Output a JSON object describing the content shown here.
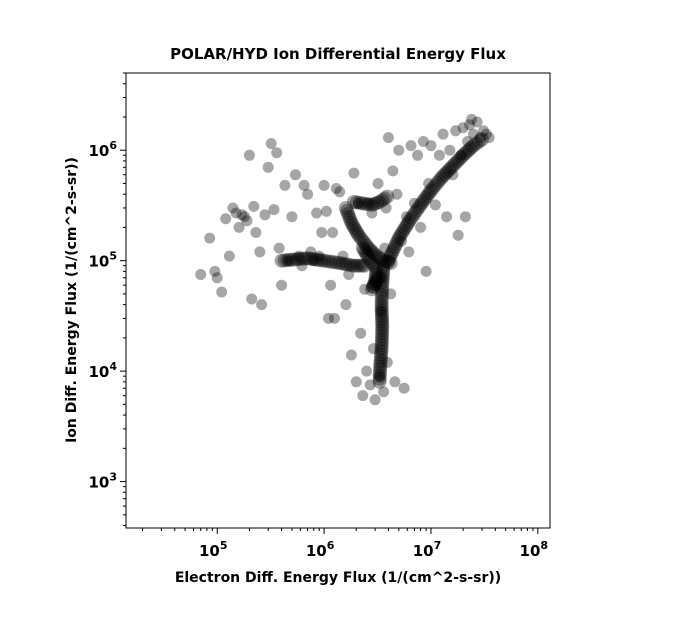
{
  "chart_data": {
    "type": "scatter",
    "title": "POLAR/HYD  Ion Differential Energy Flux",
    "xlabel": "Electron Diff. Energy Flux (1/(cm^2-s-sr))",
    "ylabel": "Ion Diff. Energy Flux (1/(cm^2-s-sr))",
    "xscale": "log",
    "yscale": "log",
    "xlim": [
      14000,
      130000000
    ],
    "ylim": [
      380,
      5000000
    ],
    "xticks": [
      {
        "base": "10",
        "exp": "5",
        "value": 100000
      },
      {
        "base": "10",
        "exp": "6",
        "value": 1000000
      },
      {
        "base": "10",
        "exp": "7",
        "value": 10000000
      },
      {
        "base": "10",
        "exp": "8",
        "value": 100000000
      }
    ],
    "yticks": [
      {
        "base": "10",
        "exp": "3",
        "value": 1000
      },
      {
        "base": "10",
        "exp": "4",
        "value": 10000
      },
      {
        "base": "10",
        "exp": "5",
        "value": 100000
      },
      {
        "base": "10",
        "exp": "6",
        "value": 1000000
      }
    ],
    "grid": false,
    "legend": "none",
    "marker_color": "#000000",
    "marker_alpha": 0.35,
    "points": [
      [
        70000,
        75000
      ],
      [
        85000,
        160000
      ],
      [
        95000,
        80000
      ],
      [
        100000,
        70000
      ],
      [
        110000,
        52000
      ],
      [
        120000,
        240000
      ],
      [
        130000,
        110000
      ],
      [
        140000,
        300000
      ],
      [
        150000,
        270000
      ],
      [
        160000,
        200000
      ],
      [
        170000,
        260000
      ],
      [
        180000,
        250000
      ],
      [
        190000,
        230000
      ],
      [
        200000,
        900000
      ],
      [
        210000,
        45000
      ],
      [
        220000,
        310000
      ],
      [
        230000,
        180000
      ],
      [
        250000,
        120000
      ],
      [
        260000,
        40000
      ],
      [
        280000,
        260000
      ],
      [
        300000,
        700000
      ],
      [
        320000,
        1150000
      ],
      [
        340000,
        290000
      ],
      [
        360000,
        950000
      ],
      [
        380000,
        130000
      ],
      [
        400000,
        60000
      ],
      [
        430000,
        480000
      ],
      [
        460000,
        100000
      ],
      [
        500000,
        250000
      ],
      [
        540000,
        600000
      ],
      [
        580000,
        110000
      ],
      [
        620000,
        90000
      ],
      [
        650000,
        480000
      ],
      [
        700000,
        400000
      ],
      [
        750000,
        120000
      ],
      [
        800000,
        100000
      ],
      [
        850000,
        270000
      ],
      [
        900000,
        110000
      ],
      [
        950000,
        180000
      ],
      [
        1000000,
        480000
      ],
      [
        1050000,
        280000
      ],
      [
        1100000,
        30000
      ],
      [
        1150000,
        60000
      ],
      [
        1200000,
        180000
      ],
      [
        1250000,
        30000
      ],
      [
        1300000,
        450000
      ],
      [
        1400000,
        420000
      ],
      [
        1500000,
        110000
      ],
      [
        1600000,
        40000
      ],
      [
        1700000,
        75000
      ],
      [
        1800000,
        14000
      ],
      [
        1900000,
        620000
      ],
      [
        2000000,
        8000
      ],
      [
        2100000,
        330000
      ],
      [
        2200000,
        22000
      ],
      [
        2300000,
        6000
      ],
      [
        2400000,
        55000
      ],
      [
        2500000,
        10000
      ],
      [
        2600000,
        330000
      ],
      [
        2700000,
        7500
      ],
      [
        2800000,
        270000
      ],
      [
        2900000,
        16000
      ],
      [
        3000000,
        5500
      ],
      [
        3100000,
        60000
      ],
      [
        3200000,
        500000
      ],
      [
        3300000,
        9000
      ],
      [
        3400000,
        35000
      ],
      [
        3500000,
        70000
      ],
      [
        3600000,
        6500
      ],
      [
        3700000,
        130000
      ],
      [
        3800000,
        300000
      ],
      [
        3900000,
        12000
      ],
      [
        4000000,
        1300000
      ],
      [
        4200000,
        50000
      ],
      [
        4400000,
        650000
      ],
      [
        4600000,
        8000
      ],
      [
        4800000,
        400000
      ],
      [
        5000000,
        1000000
      ],
      [
        5300000,
        150000
      ],
      [
        5600000,
        7000
      ],
      [
        5900000,
        250000
      ],
      [
        6200000,
        120000
      ],
      [
        6500000,
        1100000
      ],
      [
        7000000,
        330000
      ],
      [
        7500000,
        900000
      ],
      [
        8000000,
        200000
      ],
      [
        8500000,
        1200000
      ],
      [
        9000000,
        80000
      ],
      [
        9500000,
        500000
      ],
      [
        10000000,
        1100000
      ],
      [
        11000000,
        320000
      ],
      [
        12000000,
        900000
      ],
      [
        13000000,
        1400000
      ],
      [
        14000000,
        250000
      ],
      [
        15000000,
        1000000
      ],
      [
        16000000,
        600000
      ],
      [
        17000000,
        1500000
      ],
      [
        18000000,
        170000
      ],
      [
        19000000,
        900000
      ],
      [
        20000000,
        1600000
      ],
      [
        21000000,
        250000
      ],
      [
        22000000,
        1200000
      ],
      [
        23000000,
        1700000
      ],
      [
        24000000,
        1900000
      ],
      [
        25000000,
        1400000
      ],
      [
        27000000,
        1800000
      ],
      [
        29000000,
        1300000
      ],
      [
        31000000,
        1500000
      ],
      [
        33000000,
        1400000
      ],
      [
        35000000,
        1300000
      ]
    ],
    "dense_segments": [
      [
        [
          1600000,
          300000
        ],
        [
          1800000,
          220000
        ],
        [
          2100000,
          170000
        ],
        [
          2600000,
          130000
        ],
        [
          3100000,
          110000
        ],
        [
          3600000,
          100000
        ],
        [
          4200000,
          95000
        ]
      ],
      [
        [
          1900000,
          340000
        ],
        [
          2300000,
          330000
        ],
        [
          2800000,
          320000
        ],
        [
          3300000,
          340000
        ],
        [
          3900000,
          380000
        ]
      ],
      [
        [
          4000000,
          100000
        ],
        [
          5000000,
          160000
        ],
        [
          6300000,
          230000
        ],
        [
          8000000,
          320000
        ],
        [
          10000000,
          430000
        ],
        [
          12500000,
          560000
        ],
        [
          16000000,
          720000
        ],
        [
          20000000,
          900000
        ],
        [
          25000000,
          1100000
        ],
        [
          30000000,
          1250000
        ]
      ],
      [
        [
          3600000,
          90000
        ],
        [
          3500000,
          60000
        ],
        [
          3450000,
          40000
        ],
        [
          3500000,
          25000
        ],
        [
          3450000,
          16000
        ],
        [
          3350000,
          11000
        ],
        [
          3300000,
          8000
        ]
      ],
      [
        [
          2300000,
          130000
        ],
        [
          2700000,
          100000
        ],
        [
          3100000,
          85000
        ],
        [
          3000000,
          65000
        ],
        [
          2800000,
          55000
        ],
        [
          3200000,
          70000
        ]
      ],
      [
        [
          400000,
          100000
        ],
        [
          700000,
          105000
        ],
        [
          1000000,
          100000
        ],
        [
          1400000,
          95000
        ],
        [
          1900000,
          90000
        ],
        [
          2400000,
          90000
        ]
      ]
    ]
  }
}
